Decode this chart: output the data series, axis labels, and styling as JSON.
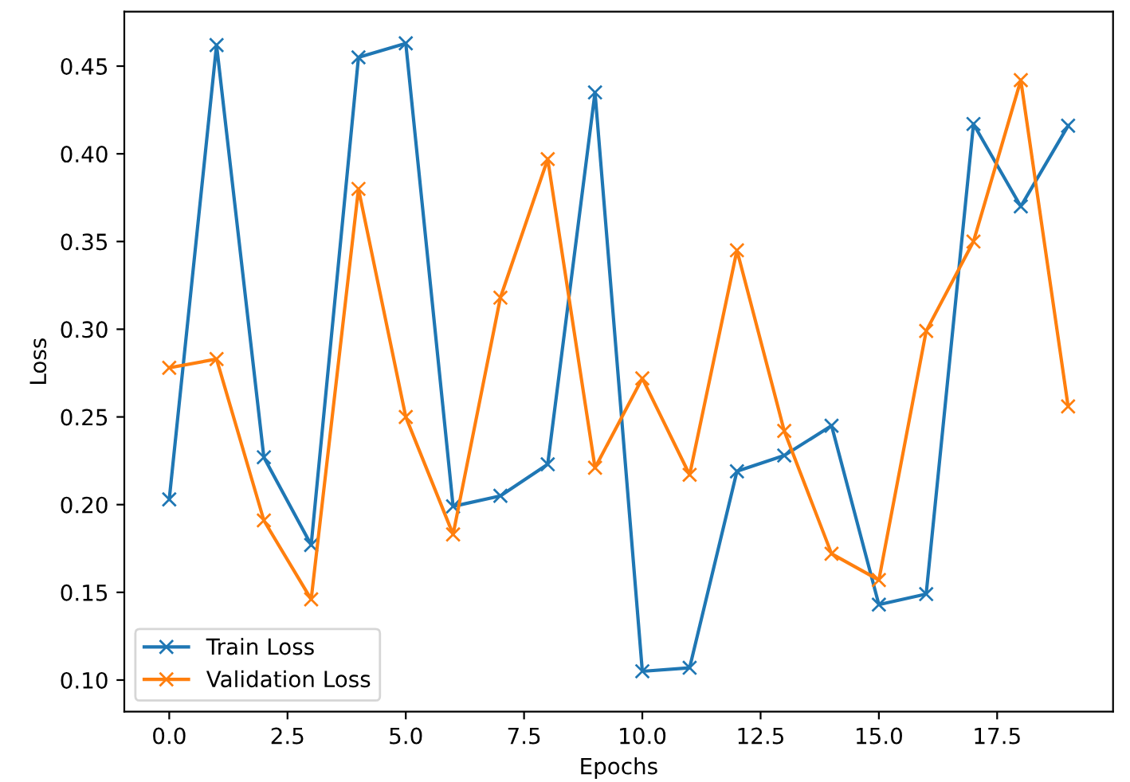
{
  "chart_data": {
    "type": "line",
    "xlabel": "Epochs",
    "ylabel": "Loss",
    "x": [
      0,
      1,
      2,
      3,
      4,
      5,
      6,
      7,
      8,
      9,
      10,
      11,
      12,
      13,
      14,
      15,
      16,
      17,
      18,
      19
    ],
    "series": [
      {
        "name": "Train Loss",
        "color": "#1f77b4",
        "values": [
          0.203,
          0.462,
          0.227,
          0.177,
          0.455,
          0.463,
          0.199,
          0.205,
          0.223,
          0.435,
          0.105,
          0.107,
          0.219,
          0.228,
          0.245,
          0.143,
          0.149,
          0.417,
          0.37,
          0.416
        ]
      },
      {
        "name": "Validation Loss",
        "color": "#ff7f0e",
        "values": [
          0.278,
          0.283,
          0.191,
          0.146,
          0.38,
          0.25,
          0.183,
          0.318,
          0.397,
          0.221,
          0.272,
          0.217,
          0.345,
          0.242,
          0.172,
          0.157,
          0.299,
          0.35,
          0.442,
          0.256
        ]
      }
    ],
    "xlim": [
      -0.95,
      19.95
    ],
    "ylim": [
      0.082,
      0.481
    ],
    "xticks": [
      {
        "value": 0,
        "label": "0.0"
      },
      {
        "value": 2.5,
        "label": "2.5"
      },
      {
        "value": 5,
        "label": "5.0"
      },
      {
        "value": 7.5,
        "label": "7.5"
      },
      {
        "value": 10,
        "label": "10.0"
      },
      {
        "value": 12.5,
        "label": "12.5"
      },
      {
        "value": 15,
        "label": "15.0"
      },
      {
        "value": 17.5,
        "label": "17.5"
      }
    ],
    "yticks": [
      {
        "value": 0.1,
        "label": "0.10"
      },
      {
        "value": 0.15,
        "label": "0.15"
      },
      {
        "value": 0.2,
        "label": "0.20"
      },
      {
        "value": 0.25,
        "label": "0.25"
      },
      {
        "value": 0.3,
        "label": "0.30"
      },
      {
        "value": 0.35,
        "label": "0.35"
      },
      {
        "value": 0.4,
        "label": "0.40"
      },
      {
        "value": 0.45,
        "label": "0.45"
      }
    ],
    "marker": "cross",
    "legend": "bottom left",
    "grid": false
  }
}
